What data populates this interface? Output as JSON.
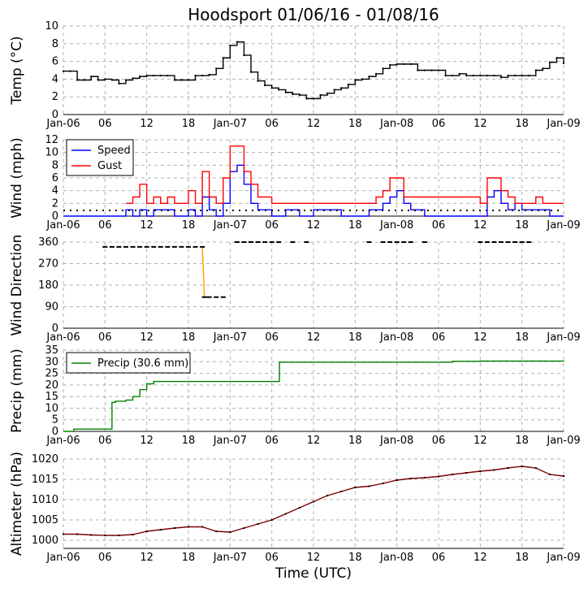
{
  "figure": {
    "title": "Hoodsport 01/06/16 - 01/08/16",
    "xlabel": "Time (UTC)"
  },
  "x_axis": {
    "range_hours": [
      0,
      72
    ],
    "tick_hours": [
      0,
      6,
      12,
      18,
      24,
      30,
      36,
      42,
      48,
      54,
      60,
      66,
      72
    ],
    "tick_labels": [
      "Jan-06",
      "06",
      "12",
      "18",
      "Jan-07",
      "06",
      "12",
      "18",
      "Jan-08",
      "06",
      "12",
      "18",
      "Jan-09"
    ]
  },
  "colors": {
    "temp": "#000000",
    "speed": "#0000ff",
    "gust": "#ff0000",
    "direction": "#ffa500",
    "precip": "#008000",
    "altimeter": "#800000",
    "grid": "#b0b0b0"
  },
  "chart_data": [
    {
      "type": "line",
      "name": "temperature",
      "ylabel": "Temp ($^\\circ$C)",
      "ylabel_text": "Temp (°C)",
      "ylim": [
        0,
        10
      ],
      "yticks": [
        0,
        2,
        4,
        6,
        8,
        10
      ],
      "series": [
        {
          "name": "Temp",
          "x": [
            0,
            1,
            2,
            3,
            4,
            5,
            6,
            7,
            8,
            9,
            10,
            11,
            12,
            13,
            14,
            15,
            16,
            17,
            18,
            19,
            20,
            21,
            22,
            23,
            24,
            25,
            26,
            27,
            28,
            29,
            30,
            31,
            32,
            33,
            34,
            35,
            36,
            37,
            38,
            39,
            40,
            41,
            42,
            43,
            44,
            45,
            46,
            47,
            48,
            49,
            50,
            51,
            52,
            53,
            54,
            55,
            56,
            57,
            58,
            59,
            60,
            61,
            62,
            63,
            64,
            65,
            66,
            67,
            68,
            69,
            70,
            71,
            72
          ],
          "values": [
            4.9,
            4.9,
            3.9,
            3.9,
            4.3,
            3.9,
            4.0,
            3.9,
            3.5,
            3.9,
            4.1,
            4.3,
            4.4,
            4.4,
            4.4,
            4.4,
            3.9,
            3.9,
            3.9,
            4.4,
            4.4,
            4.5,
            5.2,
            6.4,
            7.8,
            8.2,
            6.7,
            4.8,
            3.8,
            3.3,
            3.0,
            2.8,
            2.5,
            2.3,
            2.2,
            1.8,
            1.8,
            2.2,
            2.4,
            2.8,
            3.0,
            3.4,
            3.9,
            4.0,
            4.3,
            4.6,
            5.2,
            5.6,
            5.7,
            5.7,
            5.7,
            5.0,
            5.0,
            5.0,
            5.0,
            4.4,
            4.4,
            4.6,
            4.4,
            4.4,
            4.4,
            4.4,
            4.4,
            4.2,
            4.4,
            4.4,
            4.4,
            4.4,
            5.0,
            5.2,
            5.9,
            6.4,
            5.8
          ]
        }
      ]
    },
    {
      "type": "line",
      "name": "wind",
      "ylabel": "Wind (mph)",
      "ylim": [
        0,
        12
      ],
      "yticks": [
        0,
        2,
        4,
        6,
        8,
        10,
        12
      ],
      "legend": [
        "Speed",
        "Gust"
      ],
      "legend_position": "top-left",
      "series": [
        {
          "name": "Speed",
          "x": [
            0,
            6,
            9,
            10,
            11,
            12,
            13,
            16,
            18,
            19,
            20,
            21,
            22,
            23,
            24,
            25,
            26,
            27,
            28,
            30,
            32,
            34,
            36,
            40,
            42,
            44,
            46,
            47,
            48,
            49,
            50,
            52,
            56,
            58,
            60,
            61,
            62,
            63,
            64,
            65,
            66,
            68,
            70,
            72
          ],
          "values": [
            0,
            0,
            1,
            0,
            1,
            0,
            1,
            0,
            1,
            0,
            3,
            1,
            0,
            2,
            7,
            8,
            5,
            2,
            1,
            0,
            1,
            0,
            1,
            0,
            0,
            1,
            2,
            3,
            4,
            2,
            1,
            0,
            0,
            0,
            0,
            3,
            4,
            2,
            1,
            2,
            1,
            1,
            0,
            0
          ]
        },
        {
          "name": "Gust",
          "x": [
            9,
            10,
            11,
            12,
            13,
            14,
            15,
            16,
            17,
            18,
            19,
            20,
            21,
            22,
            23,
            24,
            25,
            26,
            27,
            28,
            29,
            30,
            31,
            32,
            33,
            34,
            35,
            36,
            42,
            43,
            44,
            45,
            46,
            47,
            48,
            49,
            50,
            60,
            61,
            62,
            63,
            64,
            65,
            66,
            67,
            68,
            69,
            70,
            71,
            72
          ],
          "values": [
            2,
            3,
            5,
            2,
            3,
            2,
            3,
            2,
            2,
            4,
            2,
            7,
            3,
            2,
            6,
            11,
            11,
            7,
            5,
            3,
            3,
            2,
            2,
            2,
            2,
            2,
            2,
            2,
            2,
            2,
            2,
            3,
            4,
            6,
            6,
            3,
            3,
            2,
            6,
            6,
            4,
            3,
            2,
            2,
            2,
            3,
            2,
            2,
            2,
            2
          ]
        }
      ]
    },
    {
      "type": "scatter",
      "name": "wind_direction",
      "ylabel": "Wind Direction",
      "ylim": [
        0,
        360
      ],
      "yticks": [
        0,
        90,
        180,
        270,
        360
      ],
      "series": [
        {
          "name": "Direction",
          "x": [
            6,
            7,
            8,
            9,
            10,
            11,
            12,
            13,
            14,
            15,
            16,
            17,
            18,
            19,
            20,
            20.3,
            21,
            22,
            23,
            25,
            26,
            27,
            28,
            29,
            30,
            31,
            33,
            35,
            44,
            46,
            47,
            48,
            49,
            50,
            52,
            60,
            61,
            62,
            63,
            64,
            65,
            66,
            67
          ],
          "values": [
            340,
            340,
            340,
            340,
            340,
            340,
            340,
            340,
            340,
            340,
            340,
            340,
            340,
            340,
            340,
            130,
            130,
            130,
            130,
            360,
            360,
            360,
            360,
            360,
            360,
            360,
            360,
            360,
            360,
            360,
            360,
            360,
            360,
            360,
            360,
            360,
            360,
            360,
            360,
            360,
            360,
            360,
            360
          ]
        }
      ]
    },
    {
      "type": "line",
      "name": "precipitation",
      "ylabel": "Precip (mm)",
      "ylim": [
        0,
        35
      ],
      "yticks": [
        0,
        5,
        10,
        15,
        20,
        25,
        30,
        35
      ],
      "legend": [
        "Precip (30.6 mm)"
      ],
      "legend_position": "top-left",
      "series": [
        {
          "name": "Precip (30.6 mm)",
          "x": [
            0,
            1,
            1.5,
            6.9,
            7.0,
            7.5,
            9,
            10,
            11,
            12,
            13,
            16,
            20,
            24,
            28,
            31,
            31.1,
            40,
            48,
            52,
            56,
            60,
            72
          ],
          "values": [
            0,
            0,
            1,
            1,
            12.5,
            13,
            13.5,
            15,
            18,
            20.5,
            21.5,
            21.5,
            21.5,
            21.5,
            21.5,
            21.5,
            29.8,
            29.8,
            29.8,
            29.8,
            30.2,
            30.3,
            30.6
          ]
        }
      ]
    },
    {
      "type": "line",
      "name": "altimeter",
      "ylabel": "Altimeter (hPa)",
      "ylim": [
        998,
        1020
      ],
      "yticks": [
        1000,
        1005,
        1010,
        1015,
        1020
      ],
      "series": [
        {
          "name": "Altimeter",
          "x": [
            0,
            2,
            4,
            6,
            8,
            10,
            12,
            14,
            16,
            18,
            20,
            22,
            24,
            26,
            28,
            30,
            32,
            34,
            36,
            38,
            40,
            42,
            44,
            46,
            48,
            50,
            52,
            54,
            56,
            58,
            60,
            62,
            64,
            66,
            68,
            70,
            72
          ],
          "values": [
            1001.5,
            1001.5,
            1001.3,
            1001.2,
            1001.2,
            1001.4,
            1002.2,
            1002.6,
            1003.0,
            1003.3,
            1003.3,
            1002.2,
            1002.0,
            1003.0,
            1004.0,
            1005.0,
            1006.5,
            1008.0,
            1009.5,
            1011.0,
            1012.0,
            1013.0,
            1013.3,
            1014.0,
            1014.8,
            1015.2,
            1015.4,
            1015.7,
            1016.2,
            1016.6,
            1017.0,
            1017.3,
            1017.8,
            1018.2,
            1017.8,
            1016.2,
            1015.8
          ]
        }
      ]
    }
  ]
}
